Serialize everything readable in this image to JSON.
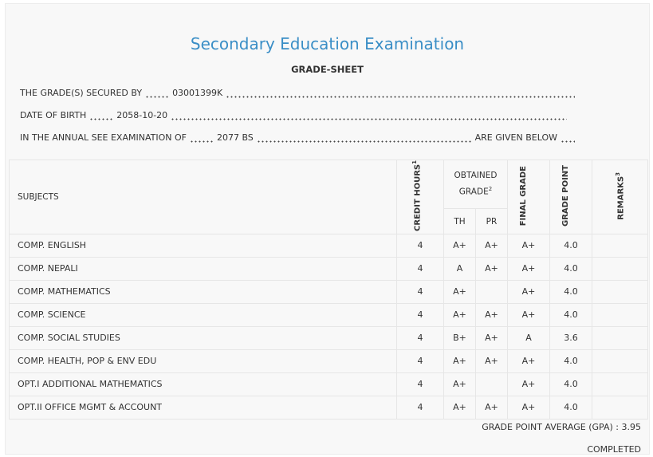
{
  "header": {
    "title": "Secondary Education Examination",
    "subtitle": "GRADE-SHEET"
  },
  "info": [
    {
      "label": "THE GRADE(S) SECURED BY",
      "value": "03001399K"
    },
    {
      "label": "DATE OF BIRTH",
      "value": "2058-10-20"
    },
    {
      "label": "IN THE ANNUAL SEE EXAMINATION OF",
      "value": "2077 BS",
      "suffix": "ARE GIVEN BELOW"
    }
  ],
  "table": {
    "headers": {
      "subjects": "SUBJECTS",
      "credit_hours": "CREDIT HOURS",
      "credit_hours_note": "1",
      "obtained_grade": "OBTAINED GRADE",
      "obtained_grade_note": "2",
      "th": "TH",
      "pr": "PR",
      "final_grade": "FINAL GRADE",
      "grade_point": "GRADE POINT",
      "remarks": "REMARKS",
      "remarks_note": "3"
    },
    "rows": [
      [
        "COMP. ENGLISH",
        "4",
        "A+",
        "A+",
        "A+",
        "4.0"
      ],
      [
        "COMP. NEPALI",
        "4",
        "A",
        "A+",
        "A+",
        "4.0"
      ],
      [
        "COMP. MATHEMATICS",
        "4",
        "A+",
        null,
        "A+",
        "4.0"
      ],
      [
        "COMP. SCIENCE",
        "4",
        "A+",
        "A+",
        "A+",
        "4.0"
      ],
      [
        "COMP. SOCIAL STUDIES",
        "4",
        "B+",
        "A+",
        "A",
        "3.6"
      ],
      [
        "COMP. HEALTH, POP & ENV EDU",
        "4",
        "A+",
        "A+",
        "A+",
        "4.0"
      ],
      [
        "OPT.I ADDITIONAL MATHEMATICS",
        "4",
        "A+",
        null,
        "A+",
        "4.0"
      ],
      [
        "OPT.II OFFICE MGMT & ACCOUNT",
        "4",
        "A+",
        "A+",
        "A+",
        "4.0"
      ]
    ]
  },
  "footer": {
    "gpa_label": "GRADE POINT AVERAGE (GPA)",
    "gpa_value": "3.95",
    "status": "COMPLETED"
  }
}
